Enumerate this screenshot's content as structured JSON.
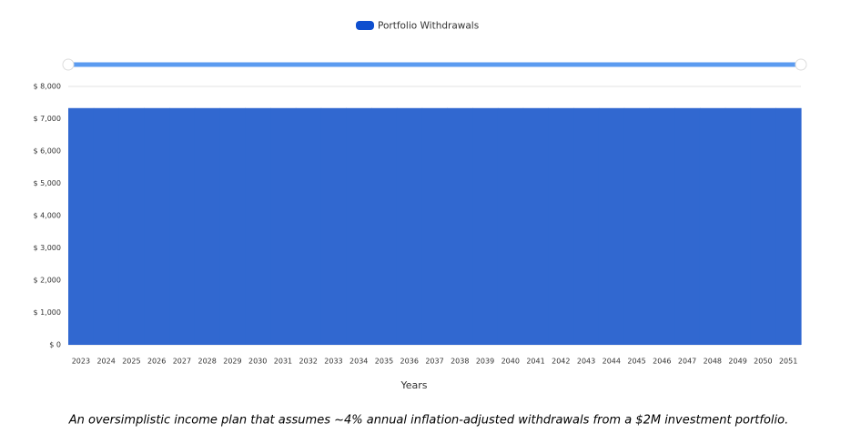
{
  "chart_data": {
    "type": "area",
    "legend": "Portfolio Withdrawals",
    "series": [
      {
        "name": "Portfolio Withdrawals",
        "color": "#3168d0",
        "values": [
          7330,
          7330,
          7330,
          7330,
          7330,
          7330,
          7330,
          7330,
          7330,
          7330,
          7330,
          7330,
          7330,
          7330,
          7330,
          7330,
          7330,
          7330,
          7330,
          7330,
          7330,
          7330,
          7330,
          7330,
          7330,
          7330,
          7330,
          7330,
          7330
        ]
      }
    ],
    "categories": [
      "2023",
      "2024",
      "2025",
      "2026",
      "2027",
      "2028",
      "2029",
      "2030",
      "2031",
      "2032",
      "2033",
      "2034",
      "2035",
      "2036",
      "2037",
      "2038",
      "2039",
      "2040",
      "2041",
      "2042",
      "2043",
      "2044",
      "2045",
      "2046",
      "2047",
      "2048",
      "2049",
      "2050",
      "2051"
    ],
    "ylim": [
      0,
      8000
    ],
    "yticks": [
      {
        "value": 0,
        "label": "$ 0"
      },
      {
        "value": 1000,
        "label": "$ 1,000"
      },
      {
        "value": 2000,
        "label": "$ 2,000"
      },
      {
        "value": 3000,
        "label": "$ 3,000"
      },
      {
        "value": 4000,
        "label": "$ 4,000"
      },
      {
        "value": 5000,
        "label": "$ 5,000"
      },
      {
        "value": 6000,
        "label": "$ 6,000"
      },
      {
        "value": 7000,
        "label": "$ 7,000"
      },
      {
        "value": 8000,
        "label": "$ 8,000"
      }
    ],
    "grid": true,
    "xlabel": "Years",
    "caption": "An oversimplistic income plan that assumes ~4% annual inflation-adjusted withdrawals from a $2M investment portfolio."
  }
}
